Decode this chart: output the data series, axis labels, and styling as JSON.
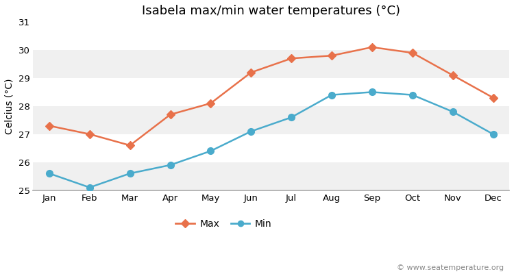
{
  "title": "Isabela max/min water temperatures (°C)",
  "ylabel": "Celcius (°C)",
  "months": [
    "Jan",
    "Feb",
    "Mar",
    "Apr",
    "May",
    "Jun",
    "Jul",
    "Aug",
    "Sep",
    "Oct",
    "Nov",
    "Dec"
  ],
  "max_temps": [
    27.3,
    27.0,
    26.6,
    27.7,
    28.1,
    29.2,
    29.7,
    29.8,
    30.1,
    29.9,
    29.1,
    28.3
  ],
  "min_temps": [
    25.6,
    25.1,
    25.6,
    25.9,
    26.4,
    27.1,
    27.6,
    28.4,
    28.5,
    28.4,
    27.8,
    27.0
  ],
  "max_color": "#e8714a",
  "min_color": "#4aabcc",
  "ylim": [
    25.0,
    31.0
  ],
  "yticks": [
    25,
    26,
    27,
    28,
    29,
    30,
    31
  ],
  "fig_bg_color": "#ffffff",
  "band_light": "#f0f0f0",
  "band_dark": "#e0e0e0",
  "bottom_line_color": "#aaaaaa",
  "watermark": "© www.seatemperature.org",
  "title_fontsize": 13,
  "label_fontsize": 10,
  "tick_fontsize": 9.5,
  "watermark_fontsize": 8
}
